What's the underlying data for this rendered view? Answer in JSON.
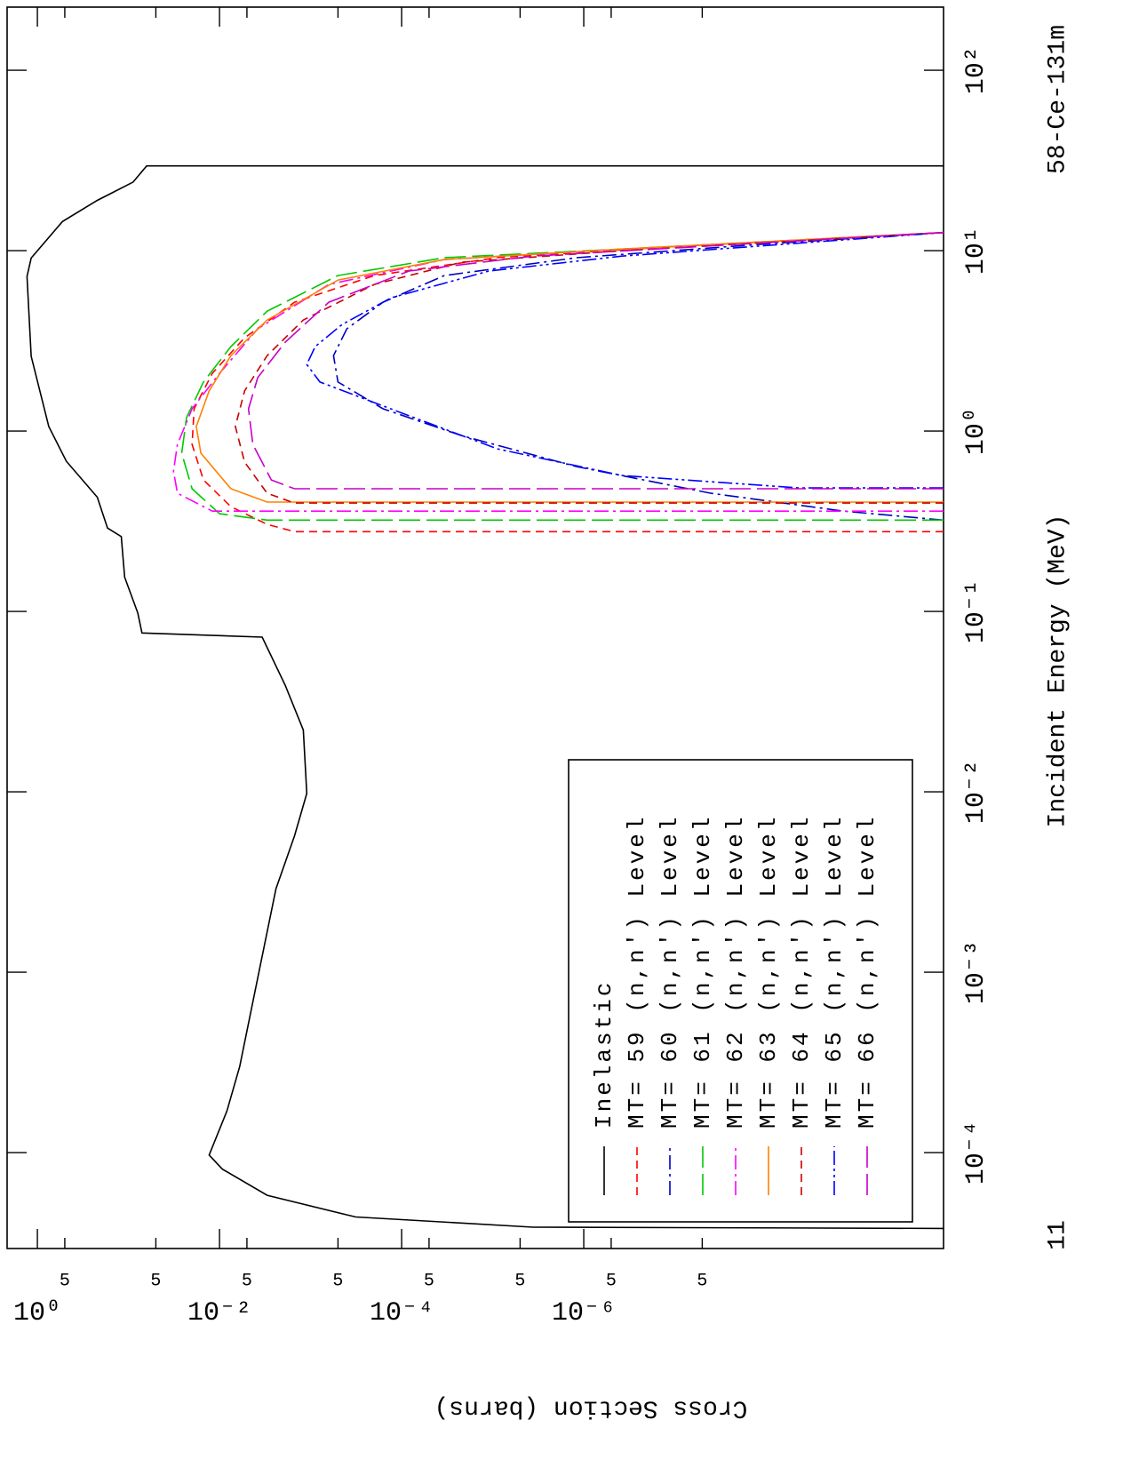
{
  "chart_data": {
    "type": "line",
    "title": "58-Ce-131m",
    "x_label": "Incident Energy (MeV)",
    "y_label": "Cross Section (barns)",
    "annotations": [
      "11"
    ],
    "x_scale": "log",
    "y_scale": "log",
    "xlim": [
      2.94e-05,
      224
    ],
    "ylim": [
      1.12e-10,
      2.15
    ],
    "xticks": [
      {
        "value": 0.0001,
        "label": "10⁻⁴"
      },
      {
        "value": 0.001,
        "label": "10⁻³"
      },
      {
        "value": 0.01,
        "label": "10⁻²"
      },
      {
        "value": 0.1,
        "label": "10⁻¹"
      },
      {
        "value": 1,
        "label": "10⁰"
      },
      {
        "value": 10,
        "label": "10¹"
      },
      {
        "value": 100,
        "label": "10²"
      }
    ],
    "yticks": [
      {
        "value": 1,
        "label": "10⁰"
      },
      {
        "value": 0.5,
        "label": "5"
      },
      {
        "value": 0.05,
        "label": "5"
      },
      {
        "value": 0.01,
        "label": "10⁻²"
      },
      {
        "value": 0.005,
        "label": "5"
      },
      {
        "value": 0.0005,
        "label": "5"
      },
      {
        "value": 0.0001,
        "label": "10⁻⁴"
      },
      {
        "value": 5e-05,
        "label": "5"
      },
      {
        "value": 5e-06,
        "label": "5"
      },
      {
        "value": 1e-06,
        "label": "10⁻⁶"
      },
      {
        "value": 5e-07,
        "label": "5"
      },
      {
        "value": 5e-08,
        "label": "5"
      }
    ],
    "legend_position": "lower-center",
    "series": [
      {
        "name": "Inelastic",
        "color": "#000000",
        "style": "solid",
        "x": [
          3.8e-05,
          3.86e-05,
          4.4e-05,
          5.8e-05,
          8.1e-05,
          9.7e-05,
          0.00017,
          0.0003,
          0.00093,
          0.0029,
          0.0057,
          0.0098,
          0.022,
          0.039,
          0.072,
          0.076,
          0.098,
          0.155,
          0.26,
          0.29,
          0.43,
          0.68,
          1.06,
          2.6,
          7.2,
          9.1,
          14.5,
          19,
          24,
          29.5,
          29.5
        ],
        "values": [
          1.12e-10,
          3.6e-06,
          0.00032,
          0.003,
          0.0093,
          0.013,
          0.0083,
          0.006,
          0.0038,
          0.0024,
          0.0015,
          0.0011,
          0.0012,
          0.0019,
          0.0034,
          0.071,
          0.079,
          0.11,
          0.12,
          0.17,
          0.22,
          0.48,
          0.75,
          1.17,
          1.3,
          1.17,
          0.53,
          0.22,
          0.089,
          0.063,
          1.12e-10
        ]
      },
      {
        "name": "MT= 59 (n,n') Level",
        "color": "#ff0000",
        "style": "dashed",
        "x": [
          0.277,
          0.277,
          0.304,
          0.381,
          0.536,
          0.843,
          1.33,
          2.09,
          3.29,
          5.18,
          7.28,
          9.14,
          10.5,
          12.6
        ],
        "values": [
          1.12e-10,
          0.0015,
          0.003,
          0.0075,
          0.015,
          0.02,
          0.019,
          0.012,
          0.0053,
          0.0015,
          0.0002,
          8.9e-06,
          1.2e-07,
          1.12e-10
        ]
      },
      {
        "name": "MT= 60 (n,n') Level",
        "color": "#0000c0",
        "style": "dashdot",
        "x": [
          0.321,
          0.36,
          0.452,
          0.635,
          0.944,
          1.33,
          1.87,
          2.62,
          3.69,
          5.18,
          7.28,
          9.14,
          10.8,
          12.6
        ],
        "values": [
          1.12e-10,
          1.4e-09,
          4e-08,
          1.2e-06,
          2.2e-05,
          0.00016,
          0.0005,
          0.00056,
          0.0004,
          0.00016,
          3.4e-05,
          1.2e-06,
          1.3e-08,
          1.12e-10
        ]
      },
      {
        "name": "MT= 61 (n,n') Level",
        "color": "#00c800",
        "style": "longdash",
        "x": [
          0.321,
          0.321,
          0.348,
          0.479,
          0.754,
          1.19,
          1.87,
          2.94,
          4.62,
          7.28,
          9.14,
          10.2,
          12.6
        ],
        "values": [
          1.12e-10,
          0.003,
          0.01,
          0.02,
          0.026,
          0.023,
          0.015,
          0.0075,
          0.003,
          0.0005,
          3.4e-05,
          3.8e-07,
          1.12e-10
        ]
      },
      {
        "name": "MT= 62 (n,n') Level",
        "color": "#ff00ff",
        "style": "dashdot",
        "x": [
          0.36,
          0.36,
          0.452,
          0.6,
          0.843,
          1.33,
          2.09,
          3.69,
          6.5,
          8.93,
          10.2,
          12.6
        ],
        "values": [
          1.12e-10,
          0.012,
          0.029,
          0.032,
          0.029,
          0.02,
          0.01,
          0.0038,
          0.00063,
          3.4e-05,
          3.8e-07,
          1.12e-10
        ]
      },
      {
        "name": "MT= 63 (n,n') Level",
        "color": "#ff8000",
        "style": "solid",
        "x": [
          0.404,
          0.404,
          0.479,
          0.754,
          1.06,
          1.67,
          2.62,
          4.13,
          6.87,
          8.93,
          10.2,
          12.6
        ],
        "values": [
          1.12e-10,
          0.003,
          0.0075,
          0.016,
          0.018,
          0.013,
          0.0075,
          0.003,
          0.0005,
          3.4e-05,
          3.8e-07,
          1.12e-10
        ]
      },
      {
        "name": "MT= 64 (n,n') Level",
        "color": "#c80000",
        "style": "dashed",
        "x": [
          0.399,
          0.399,
          0.452,
          0.673,
          1.06,
          1.67,
          2.62,
          4.13,
          6.5,
          8.63,
          10.0,
          12.6
        ],
        "values": [
          1.12e-10,
          0.0015,
          0.003,
          0.0053,
          0.0067,
          0.0053,
          0.003,
          0.0012,
          0.0002,
          2.2e-05,
          3.8e-07,
          1.12e-10
        ]
      },
      {
        "name": "MT= 65 (n,n') Level",
        "color": "#0000ff",
        "style": "dashdotdot",
        "x": [
          0.484,
          0.484,
          0.567,
          0.797,
          1.26,
          1.87,
          2.34,
          2.94,
          3.9,
          5.48,
          7.71,
          9.33,
          12.6
        ],
        "values": [
          1.12e-10,
          4.3e-09,
          3.8e-07,
          8.9e-06,
          0.0001,
          0.00079,
          0.0011,
          0.00089,
          0.00045,
          0.00013,
          1.1e-05,
          3.8e-07,
          1.12e-10
        ]
      },
      {
        "name": "MT= 66 (n,n') Level",
        "color": "#c800c8",
        "style": "longdash",
        "x": [
          0.479,
          0.479,
          0.536,
          0.843,
          1.33,
          1.98,
          3.11,
          5.18,
          7.71,
          9.33,
          12.6
        ],
        "values": [
          1.12e-10,
          0.0015,
          0.0027,
          0.0043,
          0.0048,
          0.0038,
          0.0019,
          0.00063,
          8.3e-05,
          3.6e-06,
          1.12e-10
        ]
      }
    ]
  }
}
